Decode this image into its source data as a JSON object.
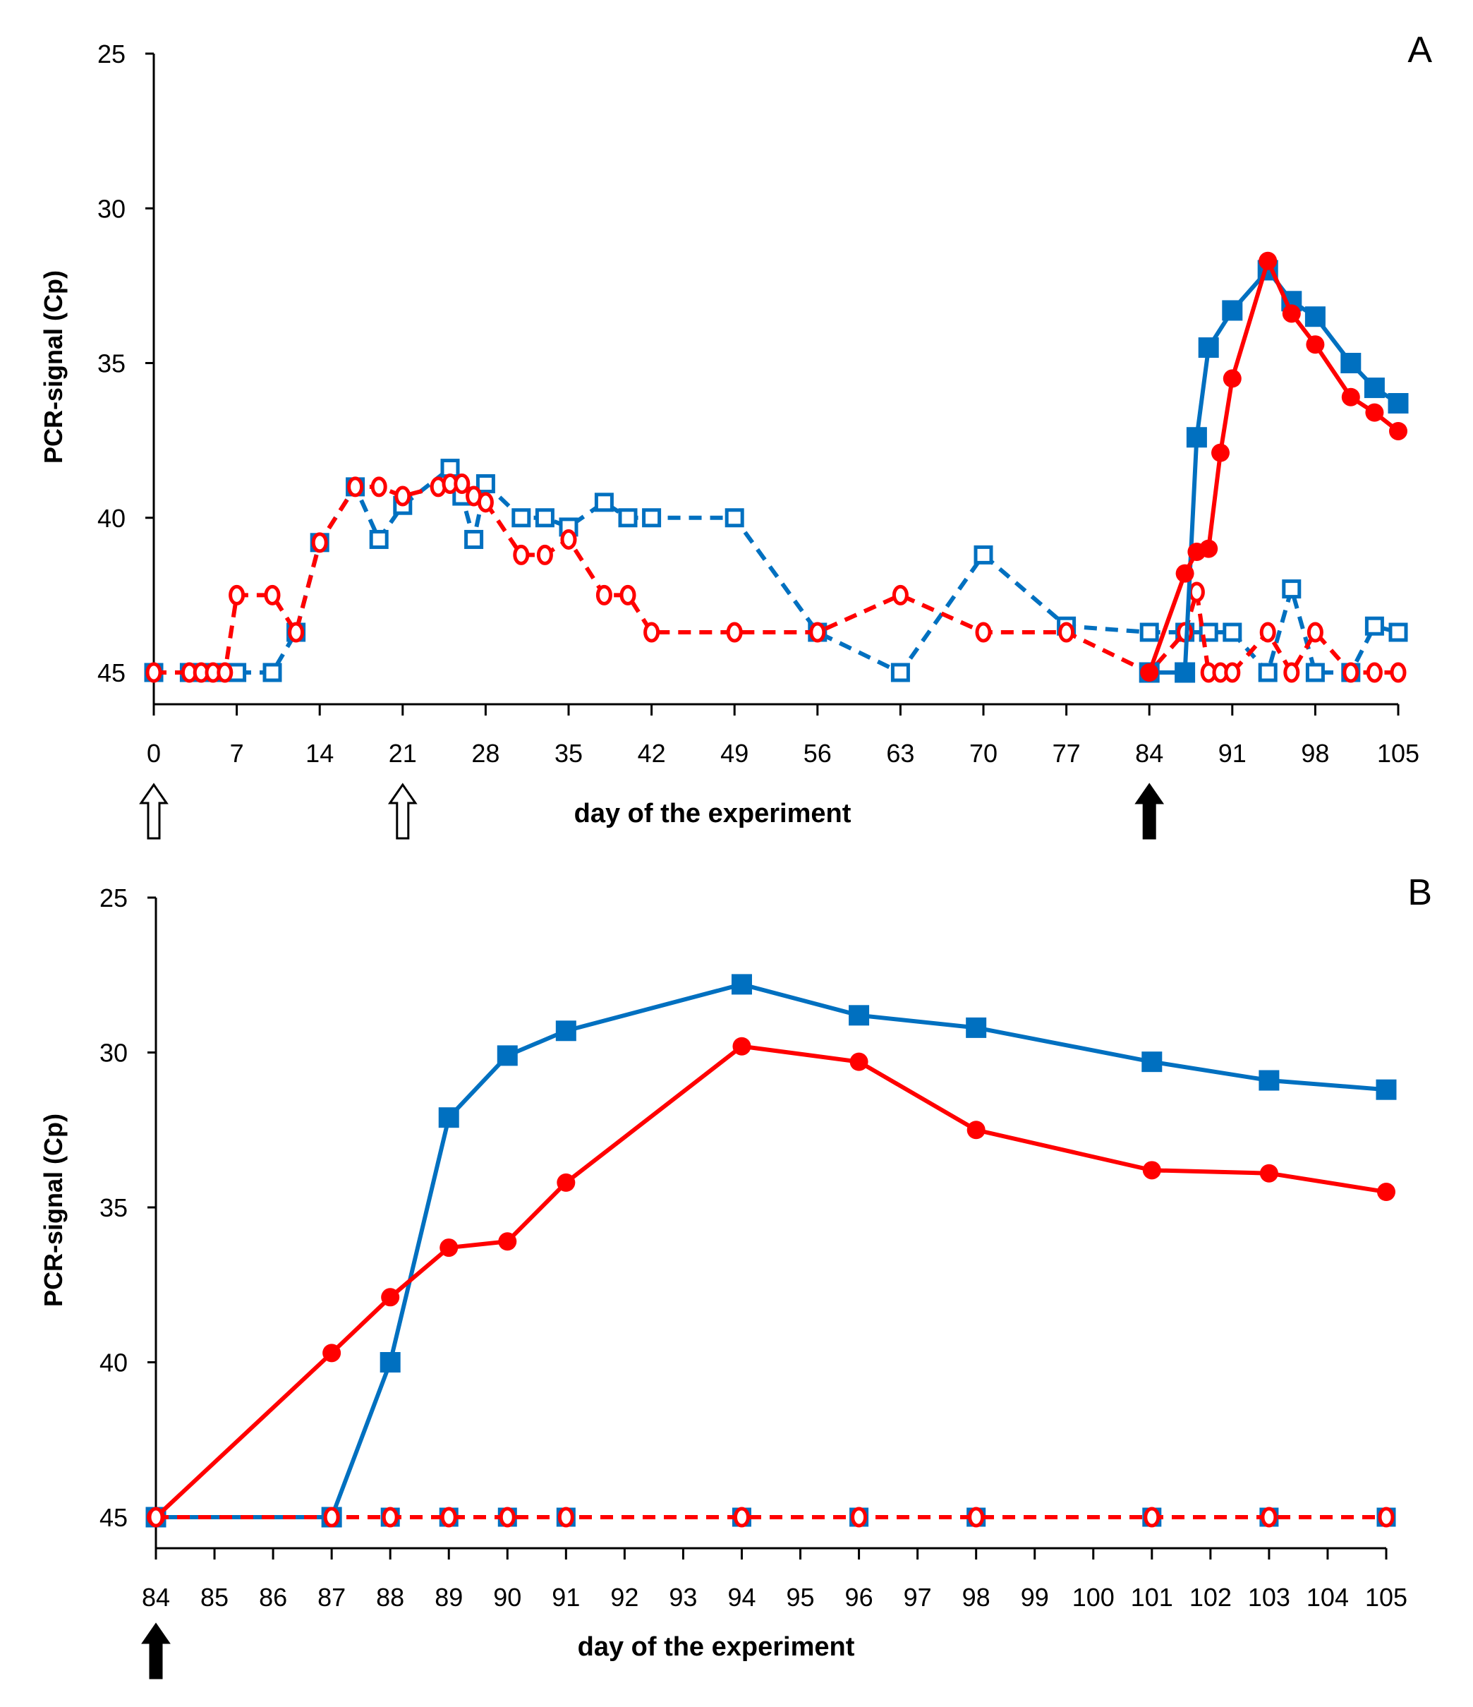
{
  "colors": {
    "blue": "#0070C0",
    "red": "#FF0000"
  },
  "chart_data": [
    {
      "type": "line",
      "panel_label": "A",
      "xlabel": "day of the experiment",
      "ylabel": "PCR-signal (Cp)",
      "xlim": [
        0,
        105
      ],
      "ylim": [
        25,
        45
      ],
      "y_inverted": true,
      "xticks": [
        0,
        7,
        14,
        21,
        28,
        35,
        42,
        49,
        56,
        63,
        70,
        77,
        84,
        91,
        98,
        105
      ],
      "yticks": [
        25,
        30,
        35,
        40,
        45
      ],
      "arrows": [
        {
          "day": 0,
          "style": "open"
        },
        {
          "day": 21,
          "style": "open"
        },
        {
          "day": 84,
          "style": "filled"
        }
      ],
      "series": [
        {
          "name": "blue-open-dashed",
          "color": "blue",
          "marker": "square",
          "filled": false,
          "dashed": true,
          "x": [
            0,
            3,
            4,
            5,
            6,
            7,
            10,
            12,
            14,
            17,
            19,
            21,
            25,
            26,
            27,
            28,
            31,
            33,
            35,
            38,
            40,
            42,
            49,
            56,
            63,
            70,
            77,
            84,
            87,
            89,
            91,
            94,
            96,
            98,
            101,
            103,
            105
          ],
          "y": [
            45,
            45,
            45,
            45,
            45,
            45,
            45,
            43.7,
            40.8,
            39,
            40.7,
            39.6,
            38.4,
            39.3,
            40.7,
            38.9,
            40,
            40,
            40.3,
            39.5,
            40,
            40,
            40,
            43.7,
            45,
            41.2,
            43.5,
            43.7,
            43.7,
            43.7,
            43.7,
            45,
            42.3,
            45,
            45,
            43.5,
            43.7
          ]
        },
        {
          "name": "red-open-dashed",
          "color": "red",
          "marker": "circle",
          "filled": false,
          "dashed": true,
          "x": [
            0,
            3,
            4,
            5,
            6,
            7,
            10,
            12,
            14,
            17,
            19,
            21,
            24,
            25,
            26,
            27,
            28,
            31,
            33,
            35,
            38,
            40,
            42,
            49,
            56,
            63,
            70,
            77,
            84,
            87,
            88,
            89,
            90,
            91,
            94,
            96,
            98,
            101,
            103,
            105
          ],
          "y": [
            45,
            45,
            45,
            45,
            45,
            42.5,
            42.5,
            43.7,
            40.8,
            39,
            39,
            39.3,
            39,
            38.9,
            38.9,
            39.3,
            39.5,
            41.2,
            41.2,
            40.7,
            42.5,
            42.5,
            43.7,
            43.7,
            43.7,
            42.5,
            43.7,
            43.7,
            45,
            43.7,
            42.4,
            45,
            45,
            45,
            43.7,
            45,
            43.7,
            45,
            45,
            45
          ]
        },
        {
          "name": "blue-filled-solid",
          "color": "blue",
          "marker": "square",
          "filled": true,
          "dashed": false,
          "x": [
            84,
            87,
            88,
            89,
            91,
            94,
            96,
            98,
            101,
            103,
            105
          ],
          "y": [
            45,
            45,
            37.4,
            34.5,
            33.3,
            32,
            33,
            33.5,
            35,
            35.8,
            36.3
          ]
        },
        {
          "name": "red-filled-solid",
          "color": "red",
          "marker": "circle",
          "filled": true,
          "dashed": false,
          "x": [
            84,
            87,
            88,
            89,
            90,
            91,
            94,
            96,
            98,
            101,
            103,
            105
          ],
          "y": [
            45,
            41.8,
            41.1,
            41,
            37.9,
            35.5,
            31.7,
            33.4,
            34.4,
            36.1,
            36.6,
            37.2
          ]
        }
      ]
    },
    {
      "type": "line",
      "panel_label": "B",
      "xlabel": "day of the experiment",
      "ylabel": "PCR-signal (Cp)",
      "xlim": [
        84,
        105
      ],
      "ylim": [
        25,
        45
      ],
      "y_inverted": true,
      "xticks": [
        84,
        85,
        86,
        87,
        88,
        89,
        90,
        91,
        92,
        93,
        94,
        95,
        96,
        97,
        98,
        99,
        100,
        101,
        102,
        103,
        104,
        105
      ],
      "yticks": [
        25,
        30,
        35,
        40,
        45
      ],
      "arrows": [
        {
          "day": 84,
          "style": "filled"
        }
      ],
      "series": [
        {
          "name": "blue-open-dashed",
          "color": "blue",
          "marker": "square",
          "filled": false,
          "dashed": true,
          "x": [
            84,
            87,
            88,
            89,
            90,
            91,
            94,
            96,
            98,
            101,
            103,
            105
          ],
          "y": [
            45,
            45,
            45,
            45,
            45,
            45,
            45,
            45,
            45,
            45,
            45,
            45
          ]
        },
        {
          "name": "blue-filled-solid",
          "color": "blue",
          "marker": "square",
          "filled": true,
          "dashed": false,
          "x": [
            84,
            87,
            88,
            89,
            90,
            91,
            94,
            96,
            98,
            101,
            103,
            105
          ],
          "y": [
            45,
            45,
            40,
            32.1,
            30.1,
            29.3,
            27.8,
            28.8,
            29.2,
            30.3,
            30.9,
            31.2
          ]
        },
        {
          "name": "red-filled-solid",
          "color": "red",
          "marker": "circle",
          "filled": true,
          "dashed": false,
          "x": [
            84,
            87,
            88,
            89,
            90,
            91,
            94,
            96,
            98,
            101,
            103,
            105
          ],
          "y": [
            45,
            39.7,
            37.9,
            36.3,
            36.1,
            34.2,
            29.8,
            30.3,
            32.5,
            33.8,
            33.9,
            34.5
          ]
        },
        {
          "name": "red-open-dashed",
          "color": "red",
          "marker": "circle",
          "filled": false,
          "dashed": true,
          "x": [
            84,
            87,
            88,
            89,
            90,
            91,
            94,
            96,
            98,
            101,
            103,
            105
          ],
          "y": [
            45,
            45,
            45,
            45,
            45,
            45,
            45,
            45,
            45,
            45,
            45,
            45
          ]
        }
      ]
    }
  ]
}
